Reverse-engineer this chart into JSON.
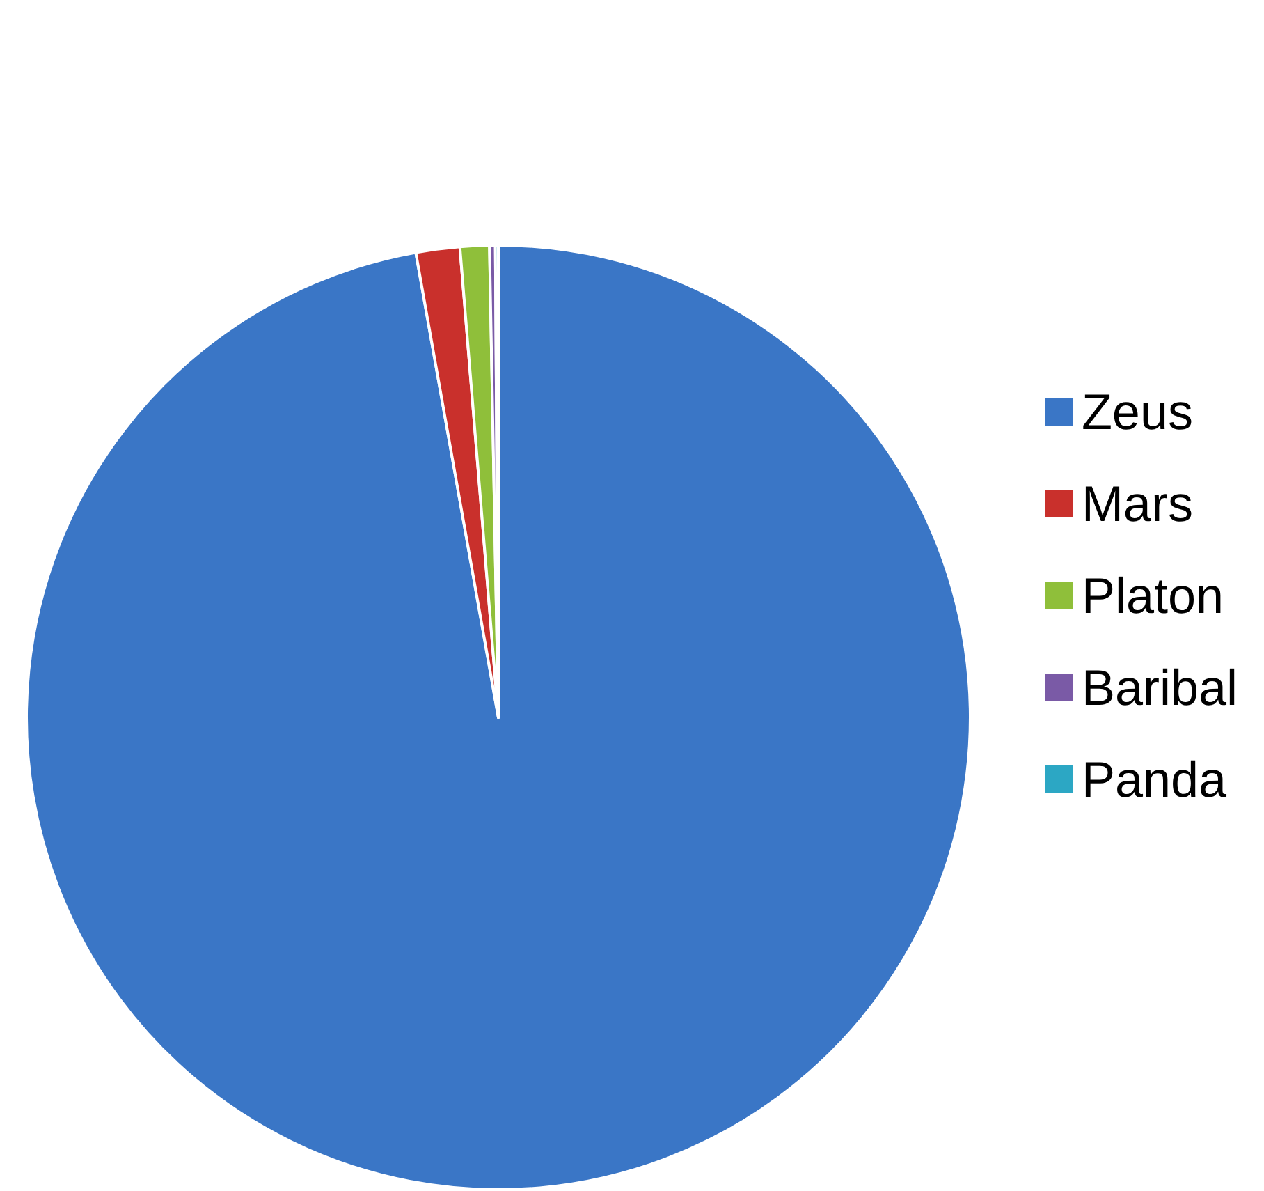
{
  "chart_data": {
    "type": "pie",
    "categories": [
      "Zeus",
      "Mars",
      "Platon",
      "Baribal",
      "Panda"
    ],
    "values": [
      97.2,
      1.5,
      1.0,
      0.2,
      0.1
    ],
    "colors": [
      "#3a76c6",
      "#c9302c",
      "#8fbf3a",
      "#7a5aa6",
      "#2ca7c4"
    ],
    "legend": "right"
  }
}
